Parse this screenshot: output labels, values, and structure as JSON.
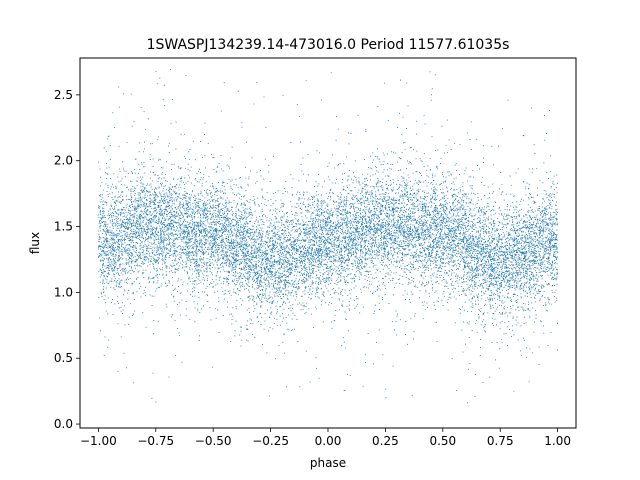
{
  "chart_data": {
    "type": "scatter",
    "title": "1SWASPJ134239.14-473016.0 Period 11577.61035s",
    "xlabel": "phase",
    "ylabel": "flux",
    "xlim": [
      -1.08,
      1.08
    ],
    "ylim": [
      -0.03,
      2.78
    ],
    "xticks": [
      -1.0,
      -0.75,
      -0.5,
      -0.25,
      0.0,
      0.25,
      0.5,
      0.75,
      1.0
    ],
    "xtick_labels": [
      "−1.00",
      "−0.75",
      "−0.50",
      "−0.25",
      "0.00",
      "0.25",
      "0.50",
      "0.75",
      "1.00"
    ],
    "yticks": [
      0.0,
      0.5,
      1.0,
      1.5,
      2.0,
      2.5
    ],
    "ytick_labels": [
      "0.0",
      "0.5",
      "1.0",
      "1.5",
      "2.0",
      "2.5"
    ],
    "grid": false,
    "legend": "none",
    "marker_color": "#1f77b4",
    "phase_range": [
      -1.0,
      1.0
    ],
    "mean_flux_profile": {
      "phase": [
        -1.0,
        -0.75,
        -0.5,
        -0.25,
        0.0,
        0.25,
        0.5,
        0.75,
        1.0
      ],
      "flux": [
        1.38,
        1.5,
        1.45,
        1.24,
        1.38,
        1.5,
        1.45,
        1.24,
        1.38
      ]
    },
    "flux_scatter": 0.2,
    "outlier_flux_range": [
      0.15,
      2.7
    ]
  }
}
